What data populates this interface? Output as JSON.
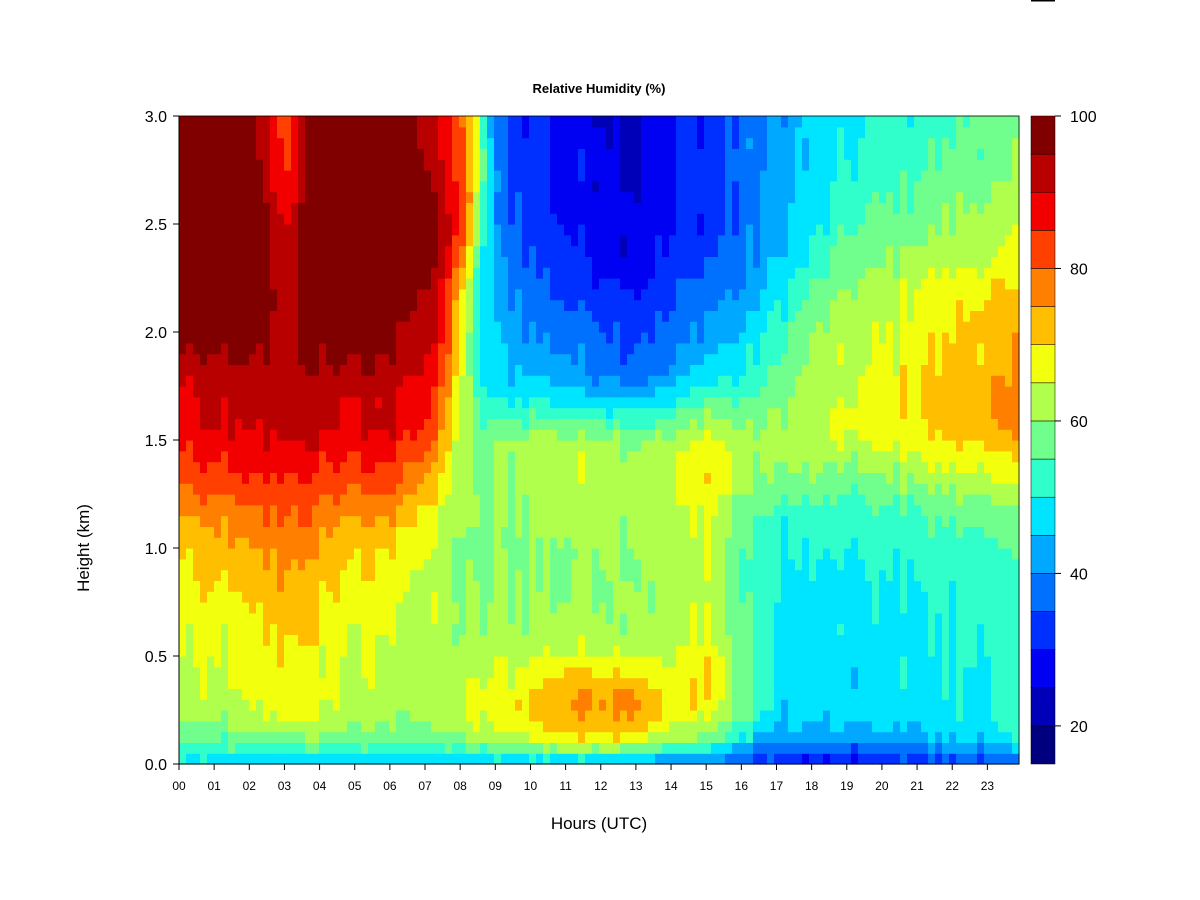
{
  "chart_data": {
    "type": "heatmap",
    "title": "Relative Humidity (%)",
    "xlabel": "Hours (UTC)",
    "ylabel": "Height (km)",
    "xlim": [
      0,
      23.9
    ],
    "ylim": [
      0,
      3.0
    ],
    "x_ticks": [
      "00",
      "01",
      "02",
      "03",
      "04",
      "05",
      "06",
      "07",
      "08",
      "09",
      "10",
      "11",
      "12",
      "13",
      "14",
      "15",
      "16",
      "17",
      "18",
      "19",
      "20",
      "21",
      "22",
      "23"
    ],
    "y_ticks": [
      "0.0",
      "0.5",
      "1.0",
      "1.5",
      "2.0",
      "2.5",
      "3.0"
    ],
    "colorbar": {
      "min": 15,
      "max": 100,
      "step": 5,
      "ticks": [
        "20",
        "40",
        "60",
        "80",
        "100"
      ],
      "colors": [
        "#00007F",
        "#0000B8",
        "#0000F2",
        "#0030FF",
        "#0070FF",
        "#00A8FF",
        "#00E5FF",
        "#30FFCC",
        "#70FF8C",
        "#B0FF4C",
        "#F2FF0D",
        "#FFBF00",
        "#FF8000",
        "#FF4000",
        "#F20000",
        "#B80000",
        "#800000"
      ]
    },
    "heights_km": [
      0.0,
      0.05,
      0.1,
      0.2,
      0.3,
      0.4,
      0.5,
      0.6,
      0.8,
      1.0,
      1.2,
      1.3,
      1.5,
      1.6,
      1.7,
      1.8,
      2.0,
      2.2,
      2.3,
      2.5,
      2.8,
      3.0
    ],
    "hours": [
      0,
      1,
      2,
      3,
      4,
      5,
      6,
      7,
      7.5,
      8,
      8.5,
      9,
      10,
      11,
      12,
      13,
      14,
      15,
      16,
      17,
      18,
      19,
      20,
      21,
      22,
      23,
      23.9
    ],
    "profiles": [
      [
        48,
        52,
        55,
        60,
        62,
        63,
        64,
        65,
        68,
        70,
        76,
        80,
        86,
        88,
        88,
        91,
        97,
        100,
        100,
        100,
        100,
        100
      ],
      [
        46,
        50,
        55,
        60,
        63,
        64,
        65,
        66,
        69,
        72,
        78,
        82,
        88,
        90,
        90,
        92,
        98,
        100,
        100,
        100,
        100,
        100
      ],
      [
        46,
        50,
        56,
        62,
        64,
        66,
        66,
        67,
        70,
        74,
        79,
        83,
        88,
        90,
        90,
        92,
        98,
        100,
        100,
        100,
        100,
        100
      ],
      [
        46,
        51,
        57,
        66,
        69,
        70,
        70,
        71,
        75,
        78,
        82,
        86,
        90,
        94,
        94,
        93,
        94,
        94,
        92,
        90,
        84,
        82
      ],
      [
        46,
        51,
        57,
        64,
        66,
        67,
        67,
        68,
        71,
        74,
        79,
        83,
        89,
        92,
        92,
        95,
        98,
        100,
        100,
        100,
        100,
        100
      ],
      [
        44,
        50,
        56,
        61,
        63,
        64,
        64,
        65,
        68,
        71,
        77,
        81,
        88,
        90,
        90,
        93,
        98,
        100,
        100,
        100,
        100,
        100
      ],
      [
        44,
        50,
        56,
        60,
        62,
        63,
        64,
        65,
        67,
        70,
        77,
        82,
        88,
        92,
        90,
        93,
        98,
        100,
        100,
        100,
        100,
        100
      ],
      [
        44,
        50,
        57,
        60,
        62,
        62,
        62,
        63,
        64,
        66,
        70,
        75,
        83,
        86,
        88,
        90,
        92,
        95,
        100,
        100,
        95,
        93
      ],
      [
        44,
        51,
        57,
        62,
        63,
        62,
        62,
        62,
        62,
        63,
        65,
        68,
        73,
        76,
        78,
        82,
        86,
        88,
        90,
        92,
        90,
        88
      ],
      [
        44,
        51,
        57,
        63,
        63,
        62,
        62,
        60,
        60,
        60,
        61,
        62,
        64,
        65,
        66,
        68,
        70,
        72,
        80,
        86,
        84,
        82
      ],
      [
        44,
        51,
        59,
        66,
        66,
        64,
        63,
        60,
        59,
        58,
        59,
        58,
        57,
        54,
        52,
        50,
        50,
        50,
        52,
        60,
        65,
        65
      ],
      [
        44,
        52,
        60,
        66,
        67,
        65,
        63,
        61,
        60,
        59,
        60,
        60,
        59,
        54,
        50,
        46,
        45,
        44,
        42,
        40,
        38,
        36
      ],
      [
        45,
        54,
        64,
        70,
        72,
        68,
        64,
        61,
        60,
        60,
        61,
        63,
        62,
        56,
        50,
        45,
        40,
        38,
        35,
        33,
        32,
        31
      ],
      [
        45,
        55,
        67,
        73,
        76,
        72,
        66,
        62,
        60,
        60,
        62,
        64,
        62,
        55,
        48,
        42,
        38,
        34,
        32,
        30,
        29,
        28
      ],
      [
        45,
        55,
        67,
        75,
        77,
        72,
        66,
        62,
        61,
        61,
        63,
        65,
        62,
        54,
        46,
        40,
        36,
        32,
        30,
        28,
        27,
        26
      ],
      [
        44,
        53,
        68,
        75,
        77,
        72,
        66,
        62,
        61,
        61,
        62,
        64,
        60,
        53,
        44,
        38,
        34,
        30,
        28,
        26,
        25,
        25
      ],
      [
        40,
        44,
        58,
        66,
        68,
        66,
        63,
        62,
        61,
        61,
        62,
        64,
        61,
        55,
        47,
        41,
        37,
        33,
        31,
        29,
        29,
        29
      ],
      [
        40,
        46,
        58,
        66,
        71,
        72,
        70,
        66,
        65,
        66,
        68,
        71,
        68,
        62,
        54,
        48,
        42,
        38,
        35,
        33,
        33,
        33
      ],
      [
        36,
        38,
        48,
        55,
        57,
        58,
        58,
        56,
        55,
        55,
        58,
        62,
        62,
        58,
        54,
        50,
        45,
        40,
        38,
        36,
        36,
        36
      ],
      [
        30,
        34,
        40,
        46,
        48,
        48,
        48,
        48,
        50,
        50,
        54,
        58,
        62,
        60,
        58,
        56,
        52,
        48,
        45,
        43,
        42,
        42
      ],
      [
        28,
        32,
        40,
        46,
        47,
        47,
        47,
        47,
        48,
        50,
        54,
        58,
        64,
        64,
        62,
        62,
        60,
        56,
        52,
        48,
        46,
        46
      ],
      [
        28,
        32,
        40,
        45,
        46,
        46,
        47,
        47,
        48,
        50,
        53,
        56,
        64,
        66,
        64,
        64,
        62,
        60,
        58,
        54,
        50,
        48
      ],
      [
        30,
        34,
        41,
        46,
        47,
        47,
        48,
        48,
        49,
        51,
        54,
        58,
        66,
        67,
        66,
        66,
        64,
        62,
        60,
        56,
        52,
        50
      ],
      [
        31,
        36,
        42,
        47,
        48,
        48,
        48,
        49,
        50,
        52,
        56,
        60,
        68,
        70,
        70,
        70,
        68,
        66,
        63,
        58,
        54,
        52
      ],
      [
        33,
        38,
        44,
        48,
        49,
        49,
        50,
        50,
        51,
        53,
        57,
        62,
        70,
        72,
        72,
        72,
        70,
        68,
        64,
        60,
        56,
        54
      ],
      [
        35,
        40,
        46,
        50,
        50,
        50,
        51,
        51,
        52,
        54,
        58,
        64,
        72,
        75,
        75,
        74,
        72,
        70,
        66,
        62,
        58,
        56
      ],
      [
        36,
        41,
        47,
        50,
        51,
        51,
        51,
        52,
        52,
        54,
        58,
        64,
        72,
        75,
        75,
        74,
        72,
        70,
        66,
        62,
        58,
        56
      ]
    ]
  }
}
